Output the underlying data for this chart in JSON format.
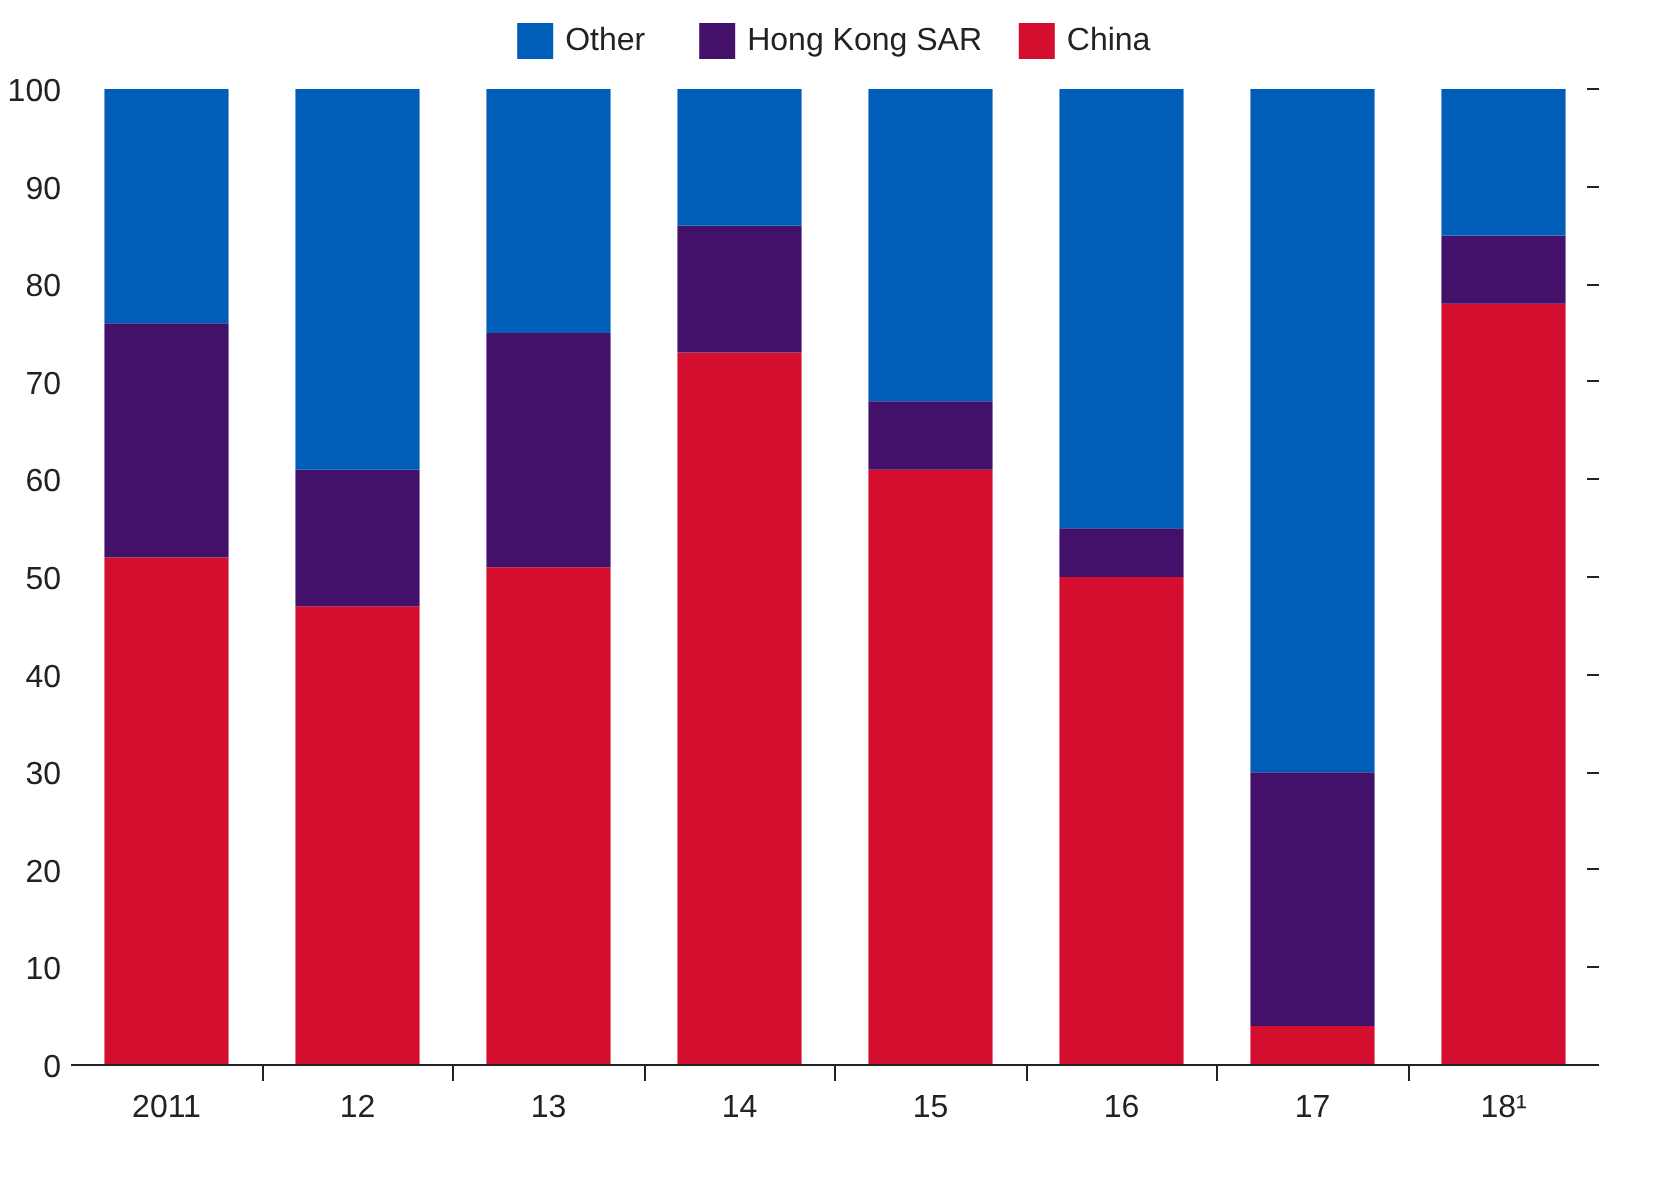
{
  "chart_data": {
    "type": "bar",
    "stacked": true,
    "categories": [
      "2011",
      "12",
      "13",
      "14",
      "15",
      "16",
      "17",
      "18¹"
    ],
    "series": [
      {
        "name": "China",
        "color": "#d40e2e",
        "values": [
          52,
          47,
          51,
          73,
          61,
          50,
          4,
          78
        ]
      },
      {
        "name": "Hong Kong SAR",
        "color": "#43106a",
        "values": [
          24,
          14,
          24,
          13,
          7,
          5,
          26,
          7
        ]
      },
      {
        "name": "Other",
        "color": "#005eb8",
        "values": [
          24,
          39,
          25,
          14,
          32,
          45,
          70,
          15
        ]
      }
    ],
    "ylim": [
      0,
      100
    ],
    "yticks": [
      0,
      10,
      20,
      30,
      40,
      50,
      60,
      70,
      80,
      90,
      100
    ],
    "grid": false,
    "legend": "top"
  }
}
